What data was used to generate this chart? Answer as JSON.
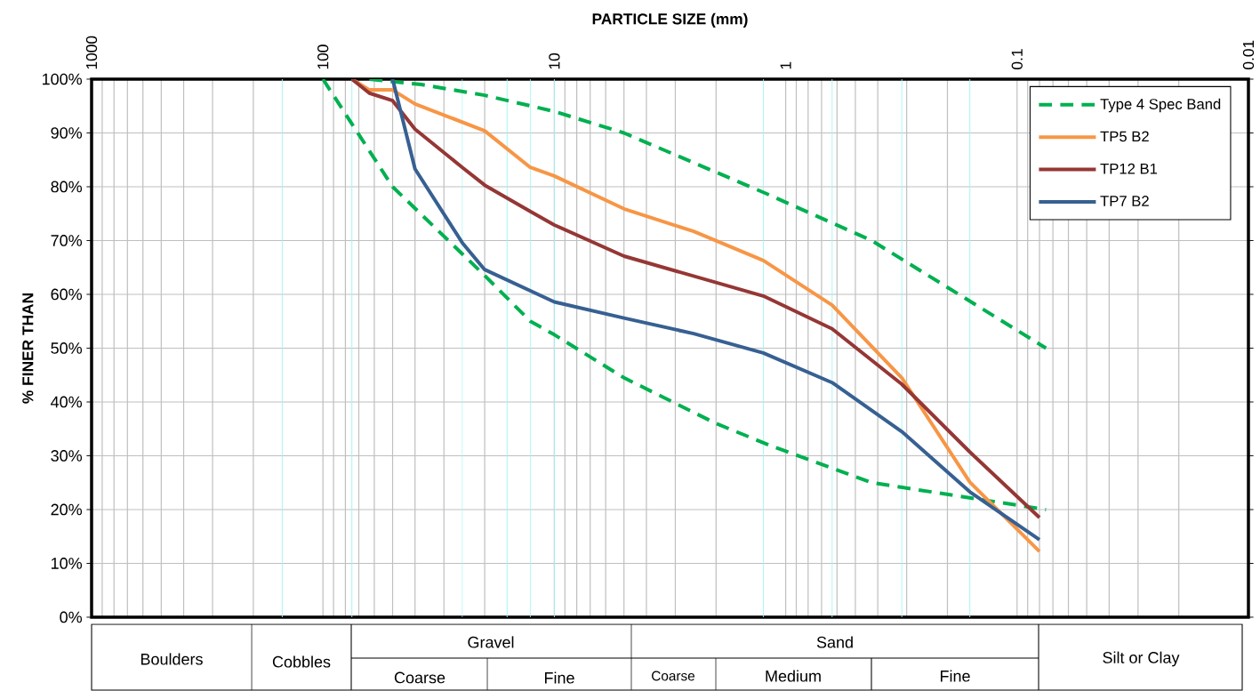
{
  "chart_data": {
    "type": "line",
    "xlabel": "PARTICLE SIZE (mm)",
    "ylabel": "% FINER THAN",
    "log": "x",
    "grid": true,
    "legend": "top right",
    "line_style": "solid",
    "xlim": [
      1000,
      0.01
    ],
    "xticks": [
      1000,
      100,
      10,
      1,
      0.1,
      0.01
    ],
    "ylim": [
      0,
      100
    ],
    "yticks": [
      {
        "value": 0,
        "label": "0%"
      },
      {
        "value": 10,
        "label": "10%"
      },
      {
        "value": 20,
        "label": "20%"
      },
      {
        "value": 30,
        "label": "30%"
      },
      {
        "value": 40,
        "label": "40%"
      },
      {
        "value": 50,
        "label": "50%"
      },
      {
        "value": 60,
        "label": "60%"
      },
      {
        "value": 70,
        "label": "70%"
      },
      {
        "value": 80,
        "label": "80%"
      },
      {
        "value": 90,
        "label": "90%"
      },
      {
        "value": 100,
        "label": "100%"
      }
    ],
    "series": [
      {
        "name": "Type 4 Spec Band",
        "color": "#00b050",
        "line_style": "dashed",
        "x": [
          63,
          37.5,
          20,
          10,
          5,
          1.18,
          0.425,
          0.075
        ],
        "values": [
          100,
          99,
          97,
          94,
          90,
          78.5,
          70,
          50
        ]
      },
      {
        "color": "#00b050",
        "line_style": "dashed",
        "x": [
          100,
          50,
          20,
          12.7,
          10,
          5,
          2,
          1.18,
          0.425,
          0.075
        ],
        "values": [
          100,
          80,
          63.5,
          55,
          52.5,
          44.5,
          36,
          32,
          25,
          20
        ]
      },
      {
        "name": "TP5 B2",
        "color": "#f79646",
        "x": [
          75,
          63,
          50,
          40,
          20,
          12.7,
          10,
          5,
          2.5,
          1.25,
          0.63,
          0.315,
          0.16,
          0.08
        ],
        "values": [
          100,
          98,
          98,
          95.4,
          90.4,
          83.6,
          82,
          75.9,
          71.7,
          66.3,
          58,
          44.5,
          25.1,
          12.2
        ]
      },
      {
        "name": "TP12 B1",
        "color": "#953735",
        "x": [
          75,
          63,
          50,
          40,
          25,
          20,
          12.7,
          10,
          5,
          1.25,
          0.63,
          0.315,
          0.16,
          0.08
        ],
        "values": [
          100,
          97.4,
          96,
          90.7,
          83.6,
          80.3,
          75.4,
          72.9,
          67.1,
          59.7,
          53.6,
          43.3,
          30.7,
          18.5
        ]
      },
      {
        "name": "TP7 B2",
        "color": "#376092",
        "x": [
          50,
          40,
          25,
          20,
          10,
          5,
          2.5,
          1.25,
          0.63,
          0.315,
          0.16,
          0.08
        ],
        "values": [
          100,
          83.3,
          69.6,
          64.6,
          58.6,
          55.6,
          52.7,
          49.1,
          43.6,
          34.5,
          23.3,
          14.4
        ]
      }
    ],
    "ref_lines": [
      {
        "axis": "x",
        "value": 150,
        "color": "#a0f4f4"
      },
      {
        "axis": "x",
        "value": 75,
        "color": "#a0f4f4"
      },
      {
        "axis": "x",
        "value": 25,
        "color": "#a0f4f4"
      },
      {
        "axis": "x",
        "value": 16,
        "color": "#a0f4f4"
      },
      {
        "axis": "x",
        "value": 12.7,
        "color": "#a0f4f4"
      },
      {
        "axis": "x",
        "value": 10,
        "color": "#a0f4f4"
      },
      {
        "axis": "x",
        "value": 1.25,
        "color": "#a0f4f4"
      },
      {
        "axis": "x",
        "value": 0.63,
        "color": "#a0f4f4"
      },
      {
        "axis": "x",
        "value": 0.315,
        "color": "#a0f4f4"
      },
      {
        "axis": "x",
        "value": 0.16,
        "color": "#a0f4f4"
      }
    ],
    "annotations": [
      "Boulders",
      "Cobbles",
      "Gravel",
      "Sand",
      "Silt or Clay",
      "Coarse",
      "Fine",
      "Coarse",
      "Medium",
      "Fine"
    ]
  }
}
